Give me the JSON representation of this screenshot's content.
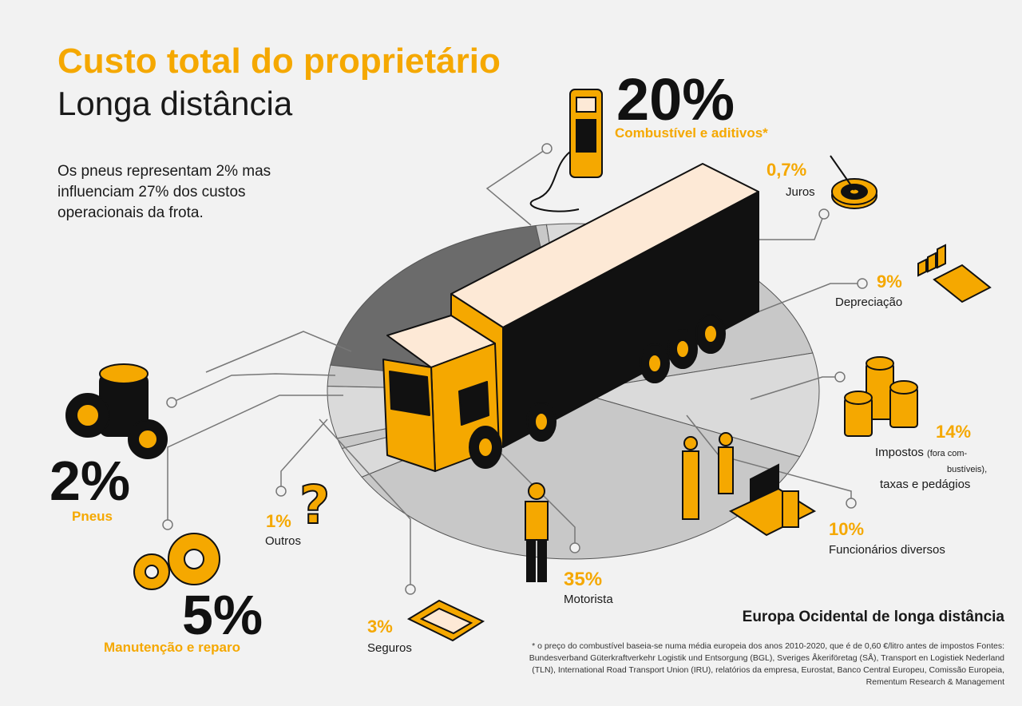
{
  "title": "Custo total do proprietário",
  "subtitle": "Longa distância",
  "intro": "Os pneus representam 2% mas influenciam 27% dos custos operacionais da frota.",
  "region": "Europa Ocidental de longa distância",
  "footnote": "* o preço do combustível baseia-se numa média europeia dos anos 2010-2020, que é de 0,60 €/litro antes de impostos Fontes: Bundesverband Güterkraftverkehr Logistik und Entsorgung (BGL), Sveriges Åkeriföretag (SÅ), Transport en Logistiek Nederland (TLN), International Road Transport Union (IRU), relatórios da empresa, Eurostat, Banco Central Europeu, Comissão Europeia, Rementum Research & Management",
  "colors": {
    "accent": "#f5a800",
    "dark": "#1a1a1a",
    "pie_dark": "#6b6b6b",
    "pie_light": "#d2d2d2"
  },
  "chart_data": {
    "type": "pie",
    "categories": [
      "Combustível e aditivos*",
      "Juros",
      "Depreciação",
      "Impostos (fora combustíveis), taxas e pedágios",
      "Funcionários diversos",
      "Motorista",
      "Seguros",
      "Outros",
      "Manutenção e reparo",
      "Pneus"
    ],
    "values": [
      20,
      0.7,
      9,
      14,
      10,
      35,
      3,
      1,
      5,
      2
    ],
    "labels": {
      "fuel": {
        "pct": "20%",
        "name": "Combustível e aditivos*"
      },
      "interest": {
        "pct": "0,7%",
        "name": "Juros"
      },
      "depreciation": {
        "pct": "9%",
        "name": "Depreciação"
      },
      "taxes": {
        "pct": "14%",
        "name_a": "Impostos",
        "name_small": "(fora com-",
        "name_small2": "bustíveis),",
        "name_b": "taxas e pedágios"
      },
      "staff": {
        "pct": "10%",
        "name": "Funcionários diversos"
      },
      "driver": {
        "pct": "35%",
        "name": "Motorista"
      },
      "insurance": {
        "pct": "3%",
        "name": "Seguros"
      },
      "other": {
        "pct": "1%",
        "name": "Outros"
      },
      "maintenance": {
        "pct": "5%",
        "name": "Manutenção e reparo"
      },
      "tyres": {
        "pct": "2%",
        "name": "Pneus"
      }
    }
  }
}
